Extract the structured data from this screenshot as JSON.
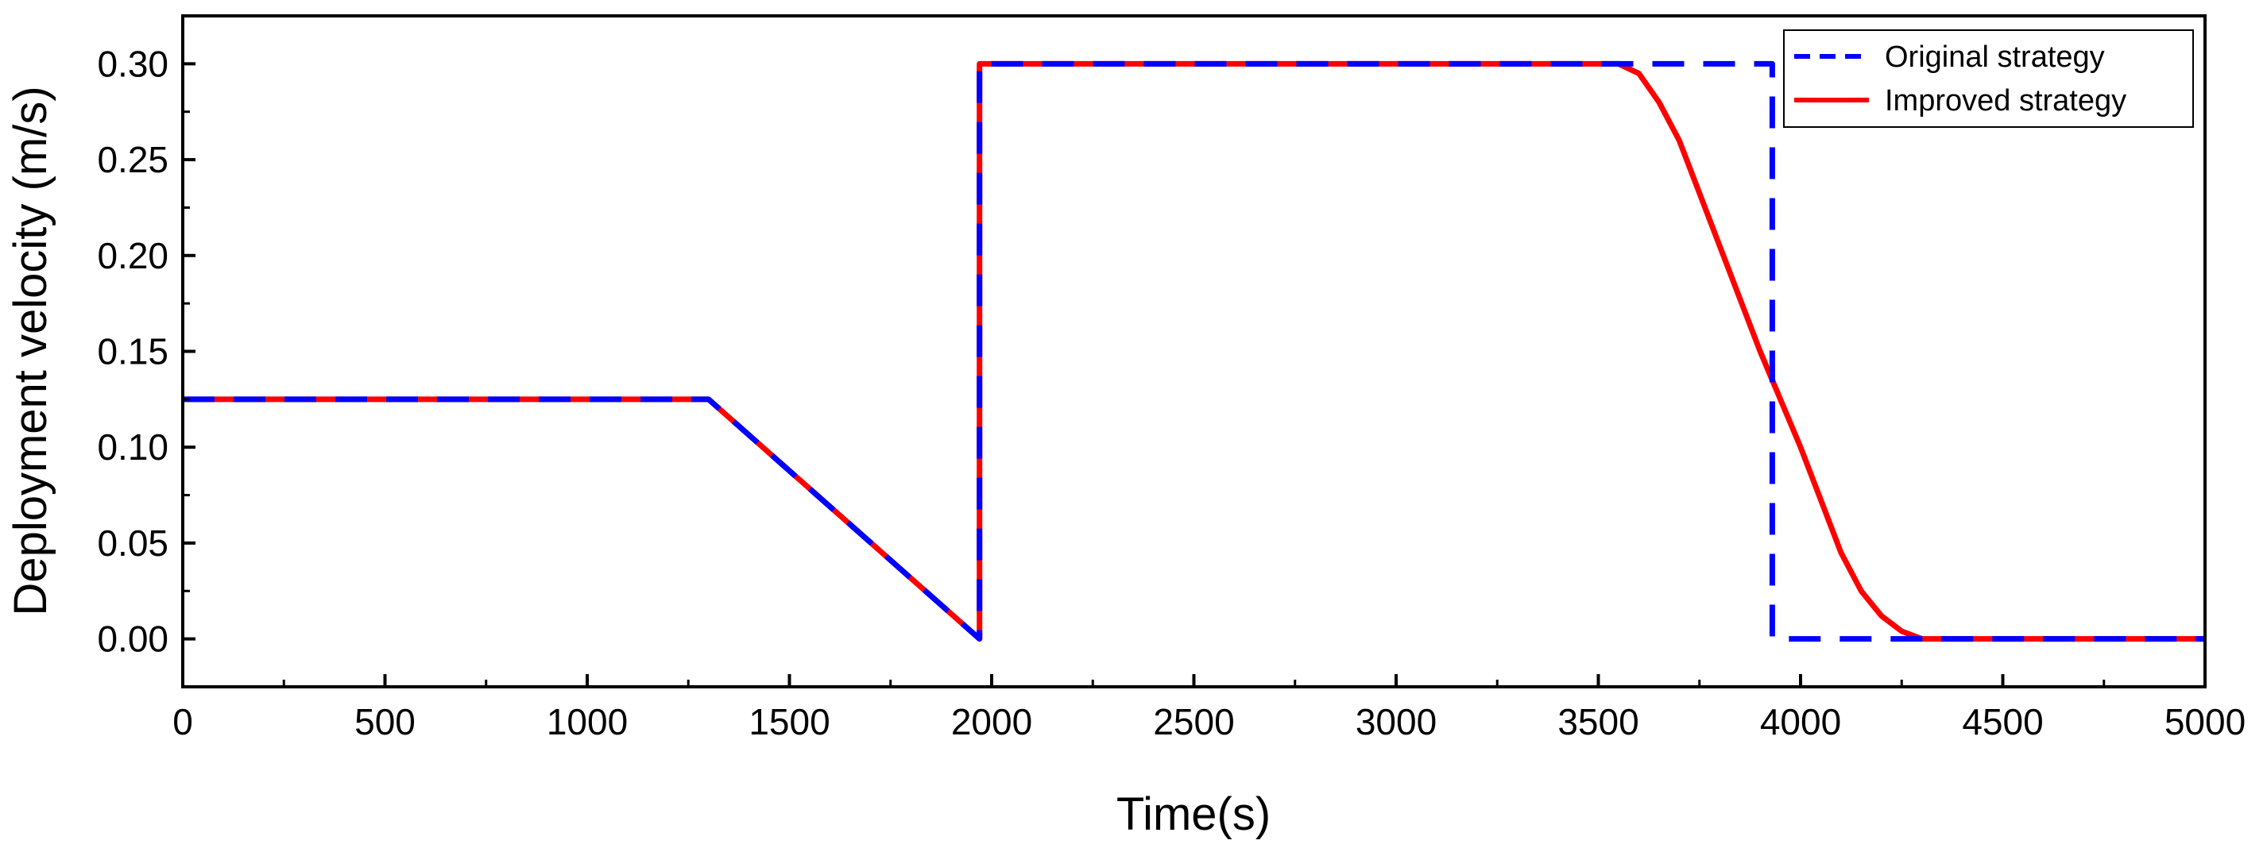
{
  "chart_data": {
    "type": "line",
    "title": "",
    "xlabel": "Time(s)",
    "ylabel": "Deployment velocity (m/s)",
    "xlim": [
      0,
      5000
    ],
    "ylim": [
      -0.025,
      0.325
    ],
    "xticks": [
      0,
      500,
      1000,
      1500,
      2000,
      2500,
      3000,
      3500,
      4000,
      4500,
      5000
    ],
    "xtick_labels": [
      "0",
      "500",
      "1000",
      "1500",
      "2000",
      "2500",
      "3000",
      "3500",
      "4000",
      "4500",
      "5000"
    ],
    "xminor": [
      250,
      750,
      1250,
      1750,
      2250,
      2750,
      3250,
      3750,
      4250,
      4750
    ],
    "yticks": [
      0.0,
      0.05,
      0.1,
      0.15,
      0.2,
      0.25,
      0.3
    ],
    "ytick_labels": [
      "0.00",
      "0.05",
      "0.10",
      "0.15",
      "0.20",
      "0.25",
      "0.30"
    ],
    "yminor": [
      -0.025,
      0.025,
      0.075,
      0.125,
      0.175,
      0.225,
      0.275,
      0.325
    ],
    "grid": false,
    "legend_position": "top-right",
    "series": [
      {
        "name": "Improved strategy",
        "color": "#ff0000",
        "style": "solid",
        "x": [
          0,
          1300,
          1970,
          1970,
          3550,
          3600,
          3650,
          3700,
          3800,
          3900,
          4000,
          4100,
          4150,
          4200,
          4250,
          4300,
          5000
        ],
        "y": [
          0.125,
          0.125,
          0.0,
          0.3,
          0.3,
          0.295,
          0.28,
          0.26,
          0.205,
          0.15,
          0.1,
          0.045,
          0.025,
          0.012,
          0.004,
          0.0,
          0.0
        ]
      },
      {
        "name": "Original strategy",
        "color": "#0000ff",
        "style": "dashed",
        "x": [
          0,
          1300,
          1970,
          1970,
          3930,
          3930,
          5000
        ],
        "y": [
          0.125,
          0.125,
          0.0,
          0.3,
          0.3,
          0.0,
          0.0
        ]
      }
    ],
    "legend_order": [
      "Original strategy",
      "Improved strategy"
    ]
  }
}
